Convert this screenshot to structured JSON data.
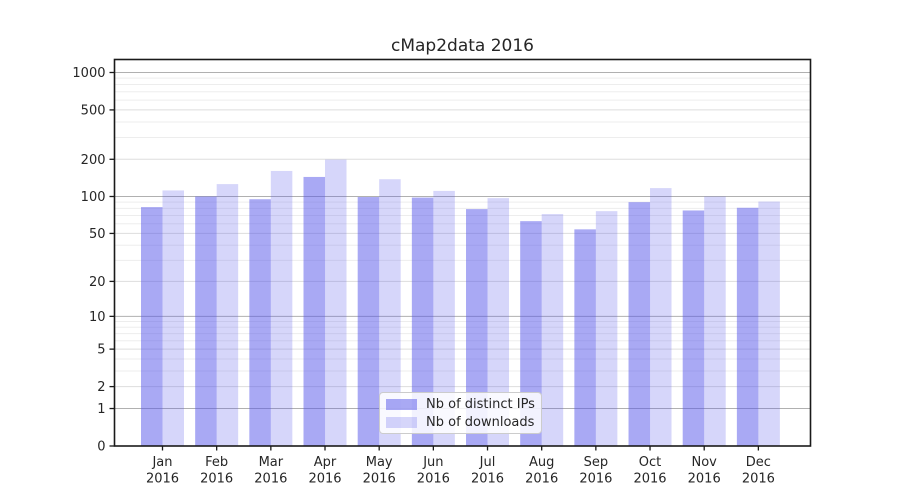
{
  "chart_data": {
    "type": "bar",
    "title": "cMap2data 2016",
    "categories": [
      "Jan",
      "Feb",
      "Mar",
      "Apr",
      "May",
      "Jun",
      "Jul",
      "Aug",
      "Sep",
      "Oct",
      "Nov",
      "Dec"
    ],
    "x_second_line": "2016",
    "series": [
      {
        "name": "Nb of distinct IPs",
        "color": "rgba(84,84,233,0.5)",
        "values": [
          82,
          100,
          95,
          144,
          99,
          98,
          79,
          63,
          54,
          90,
          77,
          81
        ]
      },
      {
        "name": "Nb of downloads",
        "color": "rgba(84,84,233,0.24)",
        "values": [
          112,
          126,
          161,
          199,
          138,
          111,
          97,
          72,
          76,
          117,
          100,
          91
        ]
      }
    ],
    "yscale": "log10(value+1)",
    "ylim": [
      0,
      1272
    ],
    "xlabel": "",
    "ylabel": "",
    "grid": true,
    "legend_position": "lower-center",
    "y_axis": {
      "tick_labels": [
        "1000",
        "500",
        "200",
        "100",
        "50",
        "20",
        "10",
        "5",
        "2",
        "1",
        "0"
      ],
      "tick_values": [
        1000,
        500,
        200,
        100,
        50,
        20,
        10,
        5,
        2,
        1,
        0
      ],
      "pow10_values": [
        1000,
        100,
        10,
        1
      ],
      "minor_values": [
        900,
        800,
        700,
        600,
        400,
        300,
        90,
        80,
        70,
        60,
        40,
        30,
        9,
        8,
        7,
        6,
        4,
        3
      ]
    },
    "colors": {
      "grid_major": "#b0b0b0",
      "grid_mid": "#dddddd",
      "grid_minor": "#ededed",
      "frame": "#1a1a1a",
      "text": "#262626"
    }
  }
}
